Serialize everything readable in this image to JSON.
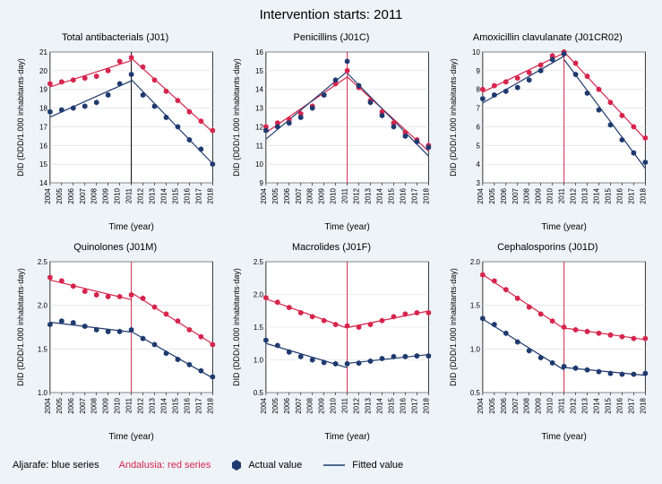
{
  "main_title": "Intervention starts: 2011",
  "years": [
    2004,
    2005,
    2006,
    2007,
    2008,
    2009,
    2010,
    2011,
    2012,
    2013,
    2014,
    2015,
    2016,
    2017,
    2018
  ],
  "intervention_year": 2011,
  "colors": {
    "background": "#eef3f8",
    "plot_bg": "#ffffff",
    "plot_border": "#000000",
    "grid": "#d7dbe0",
    "series_blue": "#1f3a6e",
    "series_red": "#d6254d",
    "intervention_line_top": "#000000",
    "intervention_line_bottom": "#d6254d",
    "tick_text": "#000000"
  },
  "fontsize": {
    "main_title": 15,
    "panel_title": 11,
    "axis_label": 10,
    "tick": 8,
    "footer": 11
  },
  "marker": {
    "type": "hexagon",
    "radius": 3.2
  },
  "line_width": 1.2,
  "panels": [
    {
      "title": "Total antibacterials (J01)",
      "ylabel": "DID (DDD/1.000 inhabitants·day)",
      "xlabel": "Time (year)",
      "ylim": [
        14,
        21
      ],
      "ytick_step": 1,
      "blue": [
        17.8,
        17.9,
        18.0,
        18.1,
        18.3,
        18.7,
        19.3,
        19.8,
        18.7,
        18.1,
        17.5,
        17.0,
        16.3,
        15.8,
        15.0
      ],
      "red": [
        19.3,
        19.4,
        19.5,
        19.6,
        19.7,
        20.0,
        20.5,
        20.7,
        20.2,
        19.5,
        18.9,
        18.4,
        17.8,
        17.3,
        16.8
      ],
      "vline_color": "#000000"
    },
    {
      "title": "Penicillins (J01C)",
      "ylabel": "DID (DDD/1.000 inhabitants·day)",
      "xlabel": "Time (year)",
      "ylim": [
        9,
        16
      ],
      "ytick_step": 1,
      "blue": [
        11.8,
        12.0,
        12.2,
        12.5,
        13.0,
        13.7,
        14.5,
        15.5,
        14.2,
        13.3,
        12.6,
        12.0,
        11.5,
        11.2,
        10.9
      ],
      "red": [
        12.0,
        12.2,
        12.4,
        12.7,
        13.1,
        13.7,
        14.3,
        15.0,
        14.1,
        13.4,
        12.8,
        12.2,
        11.7,
        11.3,
        11.0
      ],
      "vline_color": "#d6254d"
    },
    {
      "title": "Amoxicillin clavulanate (J01CR02)",
      "ylabel": "DID (DDD/1.000 inhabitants·day)",
      "xlabel": "Time (year)",
      "ylim": [
        3,
        10
      ],
      "ytick_step": 1,
      "blue": [
        7.5,
        7.7,
        7.9,
        8.1,
        8.5,
        9.0,
        9.6,
        9.9,
        8.8,
        7.8,
        6.9,
        6.1,
        5.3,
        4.6,
        4.1
      ],
      "red": [
        8.0,
        8.2,
        8.4,
        8.6,
        8.9,
        9.3,
        9.8,
        10.0,
        9.4,
        8.7,
        8.0,
        7.3,
        6.6,
        6.0,
        5.4
      ],
      "vline_color": "#d6254d"
    },
    {
      "title": "Quinolones (J01M)",
      "ylabel": "DID (DDD/1.000 inhabitants·day)",
      "xlabel": "Time (year)",
      "ylim": [
        1,
        2.5
      ],
      "ytick_step": 0.5,
      "blue": [
        1.78,
        1.82,
        1.8,
        1.76,
        1.72,
        1.7,
        1.7,
        1.72,
        1.62,
        1.55,
        1.45,
        1.38,
        1.32,
        1.25,
        1.18
      ],
      "red": [
        2.32,
        2.28,
        2.22,
        2.16,
        2.12,
        2.1,
        2.1,
        2.12,
        2.08,
        1.98,
        1.9,
        1.82,
        1.72,
        1.64,
        1.55
      ],
      "vline_color": "#d6254d"
    },
    {
      "title": "Macrolides (J01F)",
      "ylabel": "DID (DDD/1.000 inhabitants·day)",
      "xlabel": "Time (year)",
      "ylim": [
        0.5,
        2.5
      ],
      "ytick_step": 0.5,
      "blue": [
        1.3,
        1.22,
        1.12,
        1.05,
        1.0,
        0.96,
        0.94,
        0.94,
        0.95,
        0.98,
        1.02,
        1.05,
        1.05,
        1.06,
        1.06
      ],
      "red": [
        1.95,
        1.88,
        1.8,
        1.72,
        1.66,
        1.6,
        1.54,
        1.52,
        1.5,
        1.54,
        1.6,
        1.66,
        1.7,
        1.72,
        1.72
      ],
      "vline_color": "#d6254d"
    },
    {
      "title": "Cephalosporins (J01D)",
      "ylabel": "DID (DDD/1.000 inhabitants·day)",
      "xlabel": "Time (year)",
      "ylim": [
        0.5,
        2
      ],
      "ytick_step": 0.5,
      "blue": [
        1.35,
        1.28,
        1.18,
        1.08,
        0.98,
        0.9,
        0.84,
        0.8,
        0.78,
        0.76,
        0.74,
        0.72,
        0.71,
        0.71,
        0.72
      ],
      "red": [
        1.85,
        1.78,
        1.68,
        1.58,
        1.48,
        1.4,
        1.32,
        1.25,
        1.22,
        1.2,
        1.18,
        1.16,
        1.14,
        1.12,
        1.12
      ],
      "vline_color": "#d6254d"
    }
  ],
  "footer": {
    "blue_label": "Aljarafe: blue series",
    "red_label": "Andalusia: red series",
    "actual_label": "Actual value",
    "fitted_label": "Fitted value"
  }
}
